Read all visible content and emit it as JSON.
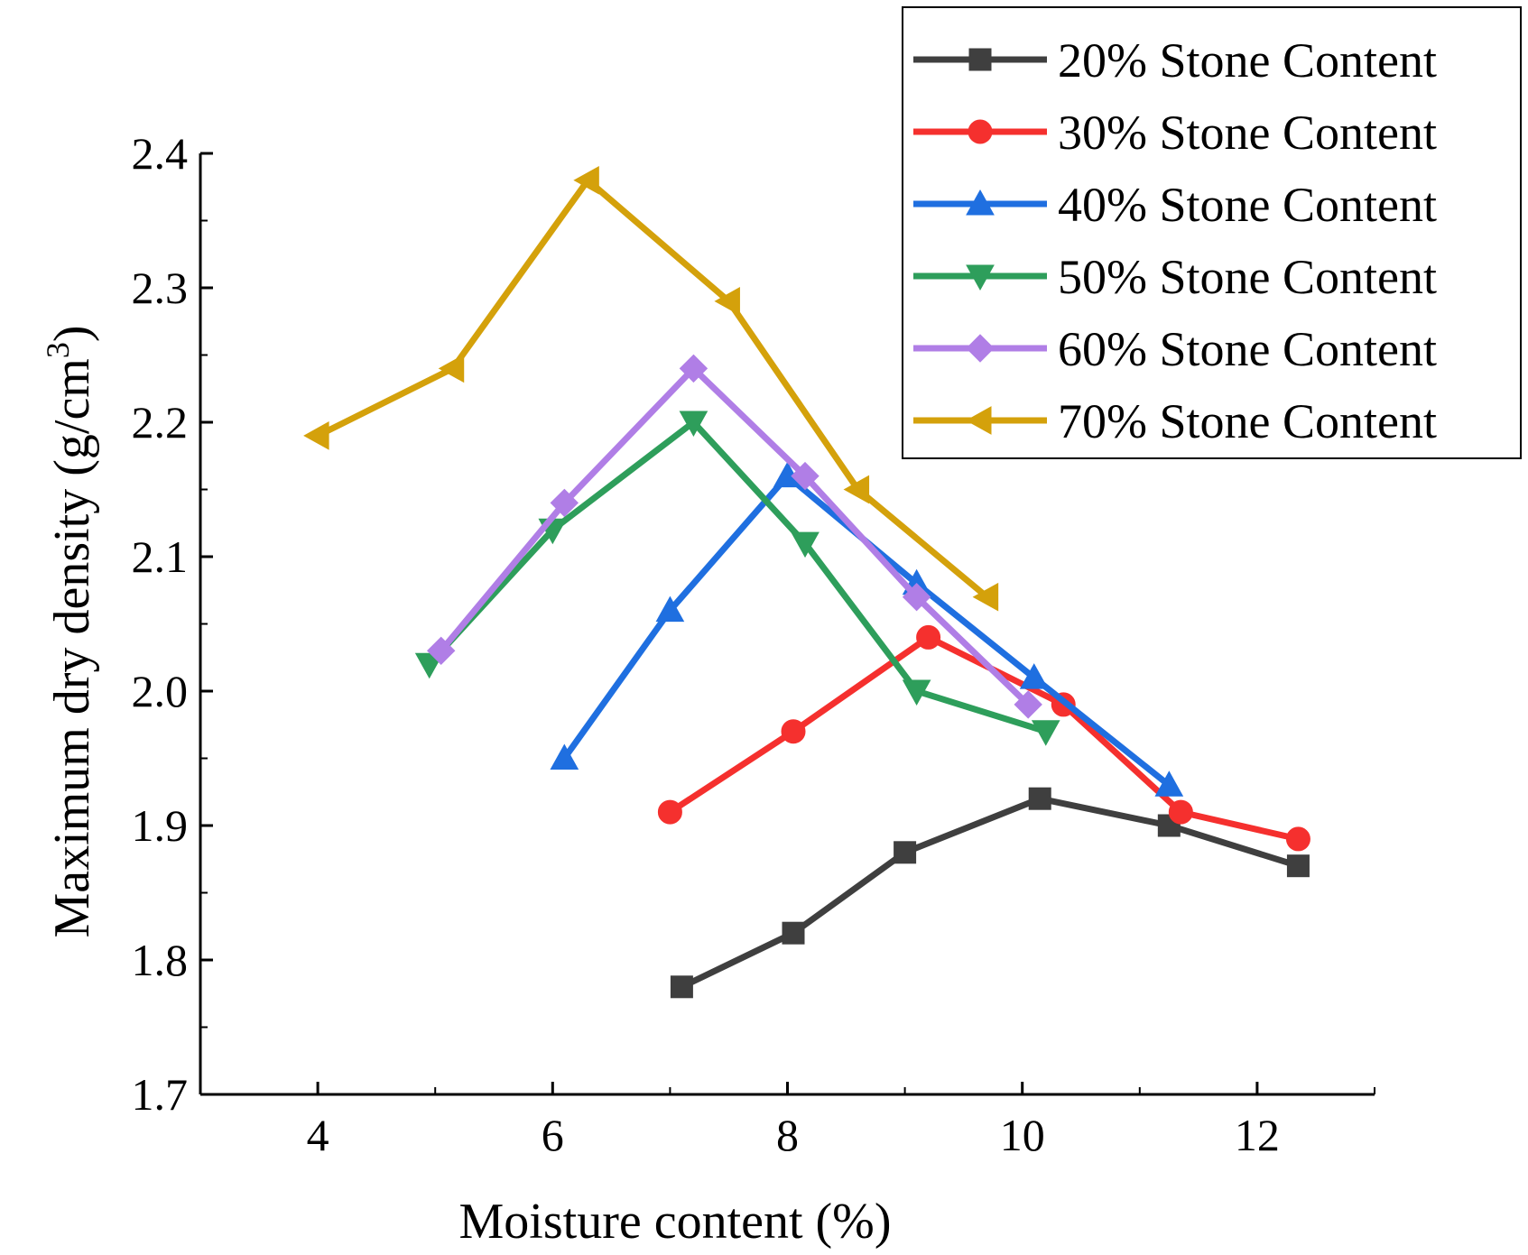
{
  "chart_data": {
    "type": "line",
    "title": "",
    "xlabel": "Moisture content (%)",
    "ylabel": {
      "main": "Maximum dry density (g/cm",
      "sup": "3",
      "close": ")"
    },
    "xlim": [
      3,
      13
    ],
    "ylim": [
      1.7,
      2.4
    ],
    "xticks": [
      "4",
      "6",
      "8",
      "10",
      "12"
    ],
    "xtick_values": [
      4,
      6,
      8,
      10,
      12
    ],
    "yticks": [
      "1.7",
      "1.8",
      "1.9",
      "2.0",
      "2.1",
      "2.2",
      "2.3",
      "2.4"
    ],
    "ytick_values": [
      1.7,
      1.8,
      1.9,
      2.0,
      2.1,
      2.2,
      2.3,
      2.4
    ],
    "legend_position": "top-right",
    "series": [
      {
        "name": "20% Stone Content",
        "color": "#3f3f3f",
        "marker": "square",
        "x": [
          7.1,
          8.05,
          9.0,
          10.15,
          11.25,
          12.35
        ],
        "y": [
          1.78,
          1.82,
          1.88,
          1.92,
          1.9,
          1.87
        ]
      },
      {
        "name": "30% Stone Content",
        "color": "#f5302e",
        "marker": "circle",
        "x": [
          7.0,
          8.05,
          9.2,
          10.35,
          11.35,
          12.35
        ],
        "y": [
          1.91,
          1.97,
          2.04,
          1.99,
          1.91,
          1.89
        ]
      },
      {
        "name": "40% Stone Content",
        "color": "#1f6fe0",
        "marker": "triangle-up",
        "x": [
          6.1,
          7.0,
          8.0,
          9.1,
          10.1,
          11.25
        ],
        "y": [
          1.95,
          2.06,
          2.16,
          2.08,
          2.01,
          1.93
        ]
      },
      {
        "name": "50% Stone Content",
        "color": "#2e9e5b",
        "marker": "triangle-down",
        "x": [
          4.95,
          6.0,
          7.2,
          8.15,
          9.1,
          10.2
        ],
        "y": [
          2.02,
          2.12,
          2.2,
          2.11,
          2.0,
          1.97
        ]
      },
      {
        "name": "60% Stone Content",
        "color": "#b07ee6",
        "marker": "diamond",
        "x": [
          5.05,
          6.1,
          7.2,
          8.15,
          9.1,
          10.05
        ],
        "y": [
          2.03,
          2.14,
          2.24,
          2.16,
          2.07,
          1.99
        ]
      },
      {
        "name": "70% Stone Content",
        "color": "#d4a10b",
        "marker": "triangle-left",
        "x": [
          4.0,
          5.15,
          6.3,
          7.5,
          8.6,
          9.7
        ],
        "y": [
          2.19,
          2.24,
          2.38,
          2.29,
          2.15,
          2.07
        ]
      }
    ]
  }
}
